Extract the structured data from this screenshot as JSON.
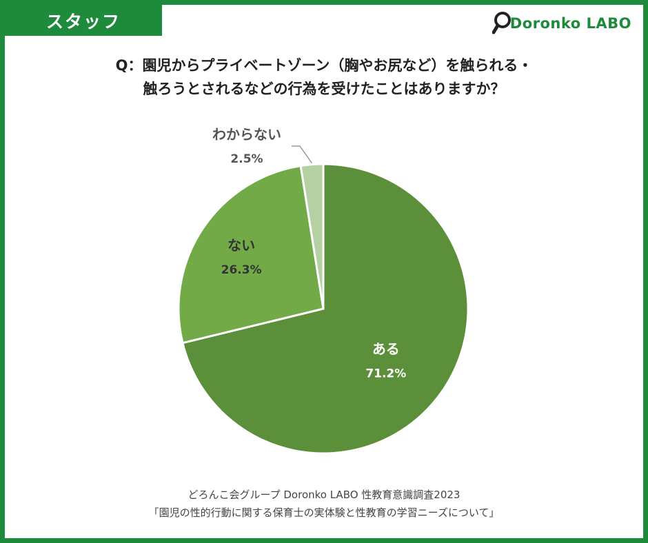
{
  "header": {
    "tag": "スタッフ",
    "logo_text": "Doronko LABO"
  },
  "title_lines": [
    "Q：園児からプライベートゾーン（胸やお尻など）を触られる・",
    "触ろうとされるなどの行為を受けたことはありますか？"
  ],
  "chart_data": {
    "type": "pie",
    "start_angle_deg": 0,
    "direction": "clockwise",
    "slices": [
      {
        "label": "ある",
        "value": 71.2,
        "display": "71.2%",
        "color": "#5c8f3a",
        "text_color": "#ffffff"
      },
      {
        "label": "ない",
        "value": 26.3,
        "display": "26.3%",
        "color": "#72aa48",
        "text_color": "#333333"
      },
      {
        "label": "わからない",
        "value": 2.5,
        "display": "2.5%",
        "color": "#b5d1a3",
        "text_color": "#555555"
      }
    ]
  },
  "footer_lines": [
    "どろんこ会グループ Doronko LABO 性教育意識調査2023",
    "「園児の性的行動に関する保育士の実体験と性教育の学習ニーズについて」"
  ]
}
